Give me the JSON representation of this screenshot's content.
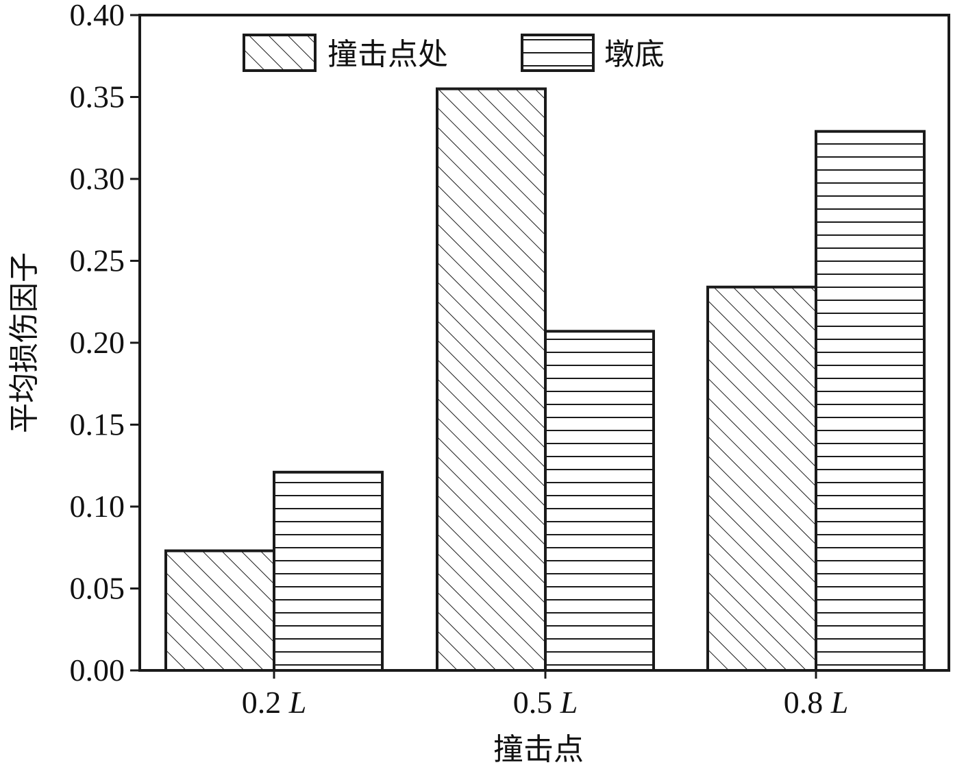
{
  "chart_data": {
    "type": "bar",
    "title": "",
    "xlabel": "撞击点",
    "ylabel": "平均损伤因子",
    "categories": [
      {
        "value": "0.2",
        "unit": "L"
      },
      {
        "value": "0.5",
        "unit": "L"
      },
      {
        "value": "0.8",
        "unit": "L"
      }
    ],
    "series": [
      {
        "name": "撞击点处",
        "pattern": "diagonal-hatch",
        "values": [
          0.073,
          0.355,
          0.234
        ]
      },
      {
        "name": "墩底",
        "pattern": "horizontal-hatch",
        "values": [
          0.121,
          0.207,
          0.329
        ]
      }
    ],
    "ylim": [
      0,
      0.4
    ],
    "yticks": [
      "0.00",
      "0.05",
      "0.10",
      "0.15",
      "0.20",
      "0.25",
      "0.30",
      "0.35",
      "0.40"
    ],
    "grid": false,
    "legend_position": "top-left",
    "colors": {
      "stroke": "#1a1a1a",
      "fill": "#ffffff"
    }
  }
}
